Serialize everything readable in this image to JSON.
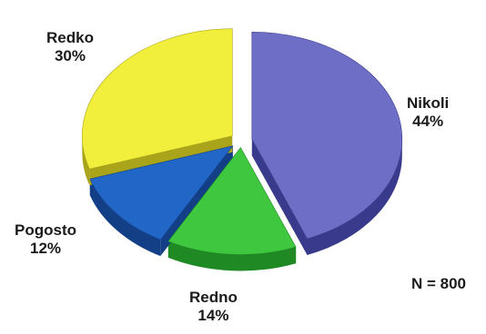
{
  "chart_data": {
    "type": "pie",
    "style": "3d-exploded",
    "slices": [
      {
        "label": "Nikoli",
        "value": 44,
        "value_text": "44%",
        "color": "#6e6ec6",
        "side_color": "#3a3a8c"
      },
      {
        "label": "Redno",
        "value": 14,
        "value_text": "14%",
        "color": "#3fc73f",
        "side_color": "#1f8a23"
      },
      {
        "label": "Pogosto",
        "value": 12,
        "value_text": "12%",
        "color": "#2266c8",
        "side_color": "#123f86"
      },
      {
        "label": "Redko",
        "value": 30,
        "value_text": "30%",
        "color": "#f2ef3c",
        "side_color": "#a9a419"
      }
    ],
    "annotation": "N = 800"
  }
}
